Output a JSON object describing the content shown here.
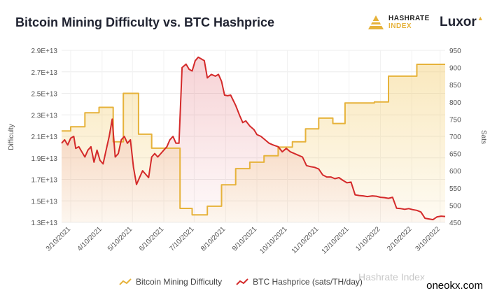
{
  "chart_data": {
    "type": "line",
    "title": "Bitcoin Mining Difficulty vs. BTC Hashprice",
    "ylabel_left": "Difficulty",
    "ylabel_right": "Sats",
    "left_ticks": [
      "2.9E+13",
      "2.7E+13",
      "2.5E+13",
      "2.3E+13",
      "2.1E+13",
      "1.9E+13",
      "1.7E+13",
      "1.5E+13",
      "1.3E+13"
    ],
    "right_ticks": [
      "950",
      "900",
      "850",
      "800",
      "750",
      "700",
      "650",
      "600",
      "550",
      "500",
      "450"
    ],
    "ylim_left": [
      13000000000000.0,
      29000000000000.0
    ],
    "ylim_right": [
      450,
      950
    ],
    "xlim": [
      "2021-03-01",
      "2022-03-15"
    ],
    "x_ticks": [
      {
        "label": "3/10/2021",
        "date": "2021-03-10"
      },
      {
        "label": "4/10/2021",
        "date": "2021-04-10"
      },
      {
        "label": "5/10/2021",
        "date": "2021-05-10"
      },
      {
        "label": "6/10/2021",
        "date": "2021-06-10"
      },
      {
        "label": "7/10/2021",
        "date": "2021-07-10"
      },
      {
        "label": "8/10/2021",
        "date": "2021-08-10"
      },
      {
        "label": "9/10/2021",
        "date": "2021-09-10"
      },
      {
        "label": "10/10/2021",
        "date": "2021-10-10"
      },
      {
        "label": "11/10/2021",
        "date": "2021-11-10"
      },
      {
        "label": "12/10/2021",
        "date": "2021-12-10"
      },
      {
        "label": "1/10/2022",
        "date": "2022-01-10"
      },
      {
        "label": "2/10/2022",
        "date": "2022-02-10"
      },
      {
        "label": "3/10/2022",
        "date": "2022-03-10"
      }
    ],
    "grid": true,
    "legend_position": "bottom",
    "series": [
      {
        "name": "Bitcoin Mining Difficulty",
        "axis": "left",
        "color": "#e6b23a",
        "shape": "step",
        "points": [
          [
            "2021-03-01",
            21500000000000.0
          ],
          [
            "2021-03-10",
            21900000000000.0
          ],
          [
            "2021-03-24",
            23200000000000.0
          ],
          [
            "2021-04-07",
            23700000000000.0
          ],
          [
            "2021-04-21",
            20500000000000.0
          ],
          [
            "2021-05-01",
            25000000000000.0
          ],
          [
            "2021-05-16",
            21200000000000.0
          ],
          [
            "2021-05-29",
            19900000000000.0
          ],
          [
            "2021-06-12",
            19900000000000.0
          ],
          [
            "2021-06-26",
            14300000000000.0
          ],
          [
            "2021-07-08",
            13700000000000.0
          ],
          [
            "2021-07-23",
            14500000000000.0
          ],
          [
            "2021-08-06",
            16500000000000.0
          ],
          [
            "2021-08-20",
            18000000000000.0
          ],
          [
            "2021-09-03",
            18600000000000.0
          ],
          [
            "2021-09-17",
            19200000000000.0
          ],
          [
            "2021-10-01",
            20000000000000.0
          ],
          [
            "2021-10-15",
            20500000000000.0
          ],
          [
            "2021-10-28",
            21700000000000.0
          ],
          [
            "2021-11-10",
            22700000000000.0
          ],
          [
            "2021-11-24",
            22200000000000.0
          ],
          [
            "2021-12-06",
            24100000000000.0
          ],
          [
            "2021-12-20",
            24100000000000.0
          ],
          [
            "2022-01-04",
            24200000000000.0
          ],
          [
            "2022-01-18",
            26600000000000.0
          ],
          [
            "2022-02-01",
            26600000000000.0
          ],
          [
            "2022-02-15",
            27700000000000.0
          ],
          [
            "2022-02-26",
            27700000000000.0
          ],
          [
            "2022-03-15",
            27700000000000.0
          ]
        ]
      },
      {
        "name": "BTC Hashprice (sats/TH/day)",
        "axis": "right",
        "color": "#d42a2a",
        "shape": "line",
        "points": [
          [
            "2021-03-01",
            680
          ],
          [
            "2021-03-04",
            690
          ],
          [
            "2021-03-07",
            675
          ],
          [
            "2021-03-10",
            695
          ],
          [
            "2021-03-13",
            700
          ],
          [
            "2021-03-15",
            665
          ],
          [
            "2021-03-18",
            670
          ],
          [
            "2021-03-21",
            655
          ],
          [
            "2021-03-24",
            640
          ],
          [
            "2021-03-27",
            660
          ],
          [
            "2021-03-30",
            670
          ],
          [
            "2021-04-02",
            625
          ],
          [
            "2021-04-05",
            660
          ],
          [
            "2021-04-08",
            630
          ],
          [
            "2021-04-11",
            620
          ],
          [
            "2021-04-14",
            660
          ],
          [
            "2021-04-17",
            700
          ],
          [
            "2021-04-20",
            750
          ],
          [
            "2021-04-23",
            640
          ],
          [
            "2021-04-26",
            650
          ],
          [
            "2021-04-29",
            690
          ],
          [
            "2021-05-02",
            700
          ],
          [
            "2021-05-05",
            680
          ],
          [
            "2021-05-08",
            690
          ],
          [
            "2021-05-11",
            610
          ],
          [
            "2021-05-14",
            560
          ],
          [
            "2021-05-17",
            580
          ],
          [
            "2021-05-20",
            600
          ],
          [
            "2021-05-23",
            590
          ],
          [
            "2021-05-26",
            580
          ],
          [
            "2021-05-29",
            640
          ],
          [
            "2021-06-01",
            650
          ],
          [
            "2021-06-04",
            640
          ],
          [
            "2021-06-07",
            650
          ],
          [
            "2021-06-10",
            660
          ],
          [
            "2021-06-13",
            670
          ],
          [
            "2021-06-16",
            690
          ],
          [
            "2021-06-19",
            700
          ],
          [
            "2021-06-22",
            680
          ],
          [
            "2021-06-25",
            680
          ],
          [
            "2021-06-28",
            900
          ],
          [
            "2021-07-02",
            910
          ],
          [
            "2021-07-05",
            895
          ],
          [
            "2021-07-08",
            890
          ],
          [
            "2021-07-11",
            920
          ],
          [
            "2021-07-14",
            930
          ],
          [
            "2021-07-17",
            925
          ],
          [
            "2021-07-20",
            920
          ],
          [
            "2021-07-23",
            870
          ],
          [
            "2021-07-27",
            880
          ],
          [
            "2021-07-31",
            875
          ],
          [
            "2021-08-03",
            880
          ],
          [
            "2021-08-06",
            860
          ],
          [
            "2021-08-09",
            820
          ],
          [
            "2021-08-12",
            818
          ],
          [
            "2021-08-15",
            820
          ],
          [
            "2021-08-20",
            790
          ],
          [
            "2021-08-24",
            760
          ],
          [
            "2021-08-27",
            740
          ],
          [
            "2021-08-30",
            745
          ],
          [
            "2021-09-03",
            730
          ],
          [
            "2021-09-07",
            720
          ],
          [
            "2021-09-10",
            705
          ],
          [
            "2021-09-14",
            700
          ],
          [
            "2021-09-18",
            690
          ],
          [
            "2021-09-22",
            680
          ],
          [
            "2021-09-26",
            675
          ],
          [
            "2021-10-01",
            670
          ],
          [
            "2021-10-05",
            655
          ],
          [
            "2021-10-09",
            665
          ],
          [
            "2021-10-13",
            655
          ],
          [
            "2021-10-17",
            650
          ],
          [
            "2021-10-21",
            645
          ],
          [
            "2021-10-25",
            640
          ],
          [
            "2021-10-29",
            615
          ],
          [
            "2021-11-02",
            612
          ],
          [
            "2021-11-06",
            610
          ],
          [
            "2021-11-10",
            605
          ],
          [
            "2021-11-14",
            588
          ],
          [
            "2021-11-18",
            582
          ],
          [
            "2021-11-22",
            582
          ],
          [
            "2021-11-26",
            577
          ],
          [
            "2021-11-30",
            580
          ],
          [
            "2021-12-04",
            572
          ],
          [
            "2021-12-08",
            565
          ],
          [
            "2021-12-12",
            567
          ],
          [
            "2021-12-16",
            530
          ],
          [
            "2021-12-20",
            528
          ],
          [
            "2021-12-24",
            527
          ],
          [
            "2021-12-28",
            525
          ],
          [
            "2022-01-02",
            527
          ],
          [
            "2022-01-06",
            526
          ],
          [
            "2022-01-10",
            523
          ],
          [
            "2022-01-14",
            522
          ],
          [
            "2022-01-18",
            520
          ],
          [
            "2022-01-22",
            523
          ],
          [
            "2022-01-26",
            491
          ],
          [
            "2022-01-30",
            490
          ],
          [
            "2022-02-03",
            488
          ],
          [
            "2022-02-07",
            490
          ],
          [
            "2022-02-11",
            487
          ],
          [
            "2022-02-15",
            485
          ],
          [
            "2022-02-19",
            480
          ],
          [
            "2022-02-23",
            462
          ],
          [
            "2022-02-27",
            460
          ],
          [
            "2022-03-03",
            458
          ],
          [
            "2022-03-07",
            466
          ],
          [
            "2022-03-11",
            468
          ],
          [
            "2022-03-15",
            467
          ]
        ]
      }
    ]
  },
  "brand": {
    "hashrate_line1": "HASHRATE",
    "hashrate_line2": "INDEX",
    "luxor": "Luxor",
    "luxor_mark": "▲"
  },
  "legend": {
    "difficulty": "Bitcoin Mining Difficulty",
    "hashprice": "BTC Hashprice (sats/TH/day)"
  },
  "watermark": {
    "faint": "Hashrate Index",
    "corner": "oneokx.com"
  }
}
